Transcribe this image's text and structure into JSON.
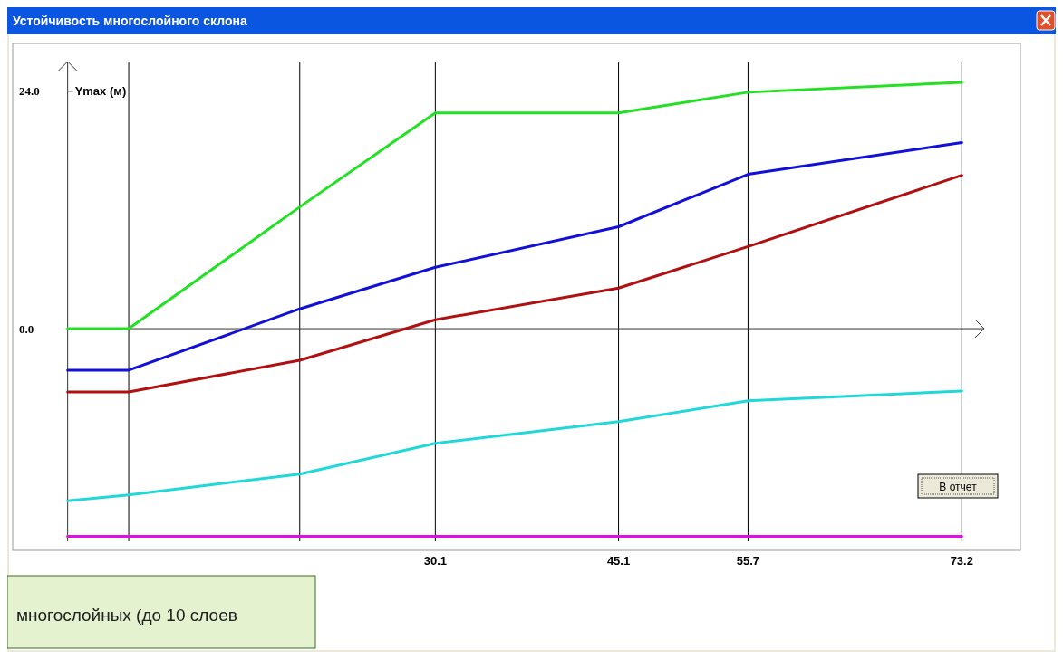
{
  "chart_data": {
    "type": "line",
    "title": "Устойчивость многослойного склона",
    "ylabel": "Ymax (м)",
    "annotations": [
      "В отчет",
      "многослойных (до 10 слоев"
    ],
    "x": [
      0,
      5,
      19,
      30.1,
      45.1,
      55.7,
      73.2
    ],
    "xlim": [
      -4.5,
      78
    ],
    "ref_lines": [
      {
        "axis": "y",
        "value": 0
      }
    ],
    "xticks": [
      {
        "value": 5,
        "label": null
      },
      {
        "value": 19,
        "label": null
      },
      30.1,
      45.1,
      55.7,
      73.2
    ],
    "ylim": [
      -21.5,
      27
    ],
    "yticks": [
      {
        "value": 0,
        "label": "0.0"
      },
      {
        "value": 24,
        "label": "24.0"
      }
    ],
    "grid": "x",
    "marker": "none",
    "line_style": "solid",
    "series": [
      {
        "color": "#22e022",
        "values": [
          0,
          0,
          12.3,
          21.8,
          21.8,
          23.9,
          24.9
        ]
      },
      {
        "color": "#1010d8",
        "values": [
          -4.2,
          -4.2,
          2.0,
          6.2,
          10.3,
          15.6,
          18.8
        ]
      },
      {
        "color": "#b01010",
        "values": [
          -6.4,
          -6.4,
          -3.2,
          0.9,
          4.1,
          8.3,
          15.5
        ]
      },
      {
        "color": "#20d8d8",
        "values": [
          -17.4,
          -16.8,
          -14.7,
          -11.6,
          -9.4,
          -7.3,
          -6.3
        ]
      },
      {
        "color": "#e010e0",
        "values": [
          -21,
          -21,
          -21,
          -21,
          -21,
          -21,
          -21
        ]
      }
    ]
  }
}
